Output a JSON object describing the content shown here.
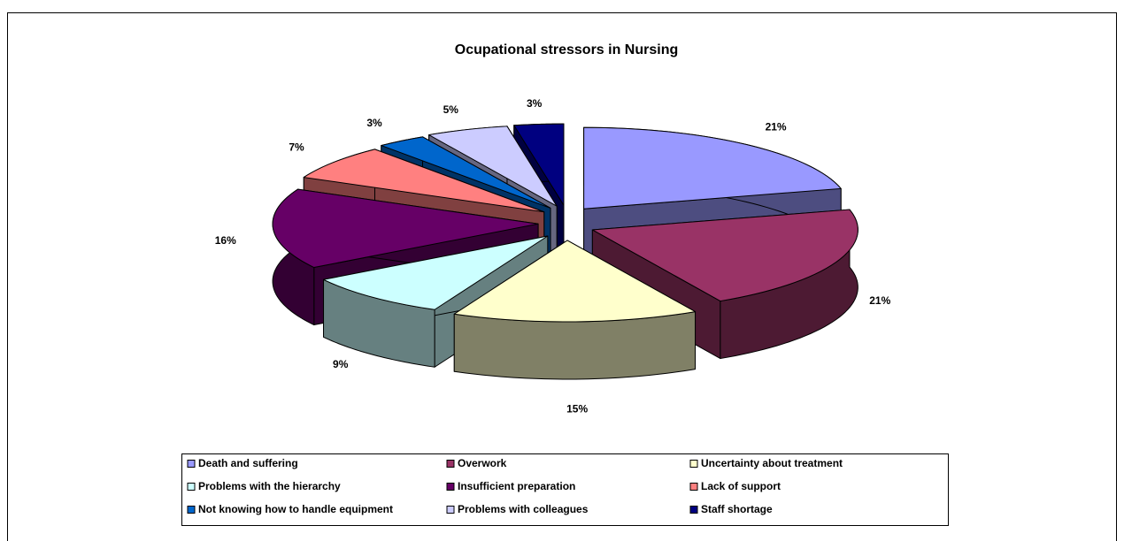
{
  "chart_data": {
    "type": "pie",
    "title": "Ocupational stressors in Nursing",
    "categories": [
      "Death and suffering",
      "Overwork",
      "Uncertainty about treatment",
      "Problems with the hierarchy",
      "Insufficient preparation",
      "Lack of support",
      "Not knowing how to handle equipment",
      "Problems with colleagues",
      "Staff shortage"
    ],
    "values": [
      21,
      21,
      15,
      9,
      16,
      7,
      3,
      5,
      3
    ],
    "value_labels": [
      "21%",
      "21%",
      "15%",
      "9%",
      "16%",
      "7%",
      "3%",
      "5%",
      "3%"
    ],
    "colors": [
      "#9999FF",
      "#993366",
      "#FFFFCC",
      "#CCFFFF",
      "#660066",
      "#FF8080",
      "#0066CC",
      "#CCCCFF",
      "#000080"
    ],
    "legend": "bottom"
  }
}
